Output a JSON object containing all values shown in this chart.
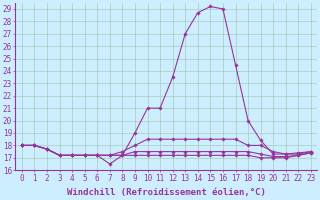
{
  "xlabel": "Windchill (Refroidissement éolien,°C)",
  "background_color": "#cceeff",
  "line_color": "#993399",
  "xlim": [
    -0.5,
    23.5
  ],
  "ylim": [
    16,
    29.5
  ],
  "yticks": [
    16,
    17,
    18,
    19,
    20,
    21,
    22,
    23,
    24,
    25,
    26,
    27,
    28,
    29
  ],
  "xticks": [
    0,
    1,
    2,
    3,
    4,
    5,
    6,
    7,
    8,
    9,
    10,
    11,
    12,
    13,
    14,
    15,
    16,
    17,
    18,
    19,
    20,
    21,
    22,
    23
  ],
  "series": [
    [
      18.0,
      18.0,
      17.7,
      17.2,
      17.2,
      17.2,
      17.2,
      16.5,
      17.2,
      19.0,
      21.0,
      21.0,
      23.5,
      27.0,
      28.7,
      29.2,
      29.0,
      24.5,
      20.0,
      18.4,
      17.3,
      17.3,
      17.4,
      17.5
    ],
    [
      18.0,
      18.0,
      17.7,
      17.2,
      17.2,
      17.2,
      17.2,
      17.2,
      17.5,
      18.0,
      18.5,
      18.5,
      18.5,
      18.5,
      18.5,
      18.5,
      18.5,
      18.5,
      18.0,
      18.0,
      17.5,
      17.3,
      17.3,
      17.5
    ],
    [
      18.0,
      18.0,
      17.7,
      17.2,
      17.2,
      17.2,
      17.2,
      17.2,
      17.2,
      17.5,
      17.5,
      17.5,
      17.5,
      17.5,
      17.5,
      17.5,
      17.5,
      17.5,
      17.5,
      17.3,
      17.1,
      17.1,
      17.2,
      17.4
    ],
    [
      18.0,
      18.0,
      17.7,
      17.2,
      17.2,
      17.2,
      17.2,
      17.2,
      17.2,
      17.2,
      17.2,
      17.2,
      17.2,
      17.2,
      17.2,
      17.2,
      17.2,
      17.2,
      17.2,
      17.0,
      17.0,
      17.0,
      17.2,
      17.4
    ]
  ],
  "grid_color": "#aaccbb",
  "tick_fontsize": 5.5,
  "label_fontsize": 6.5
}
